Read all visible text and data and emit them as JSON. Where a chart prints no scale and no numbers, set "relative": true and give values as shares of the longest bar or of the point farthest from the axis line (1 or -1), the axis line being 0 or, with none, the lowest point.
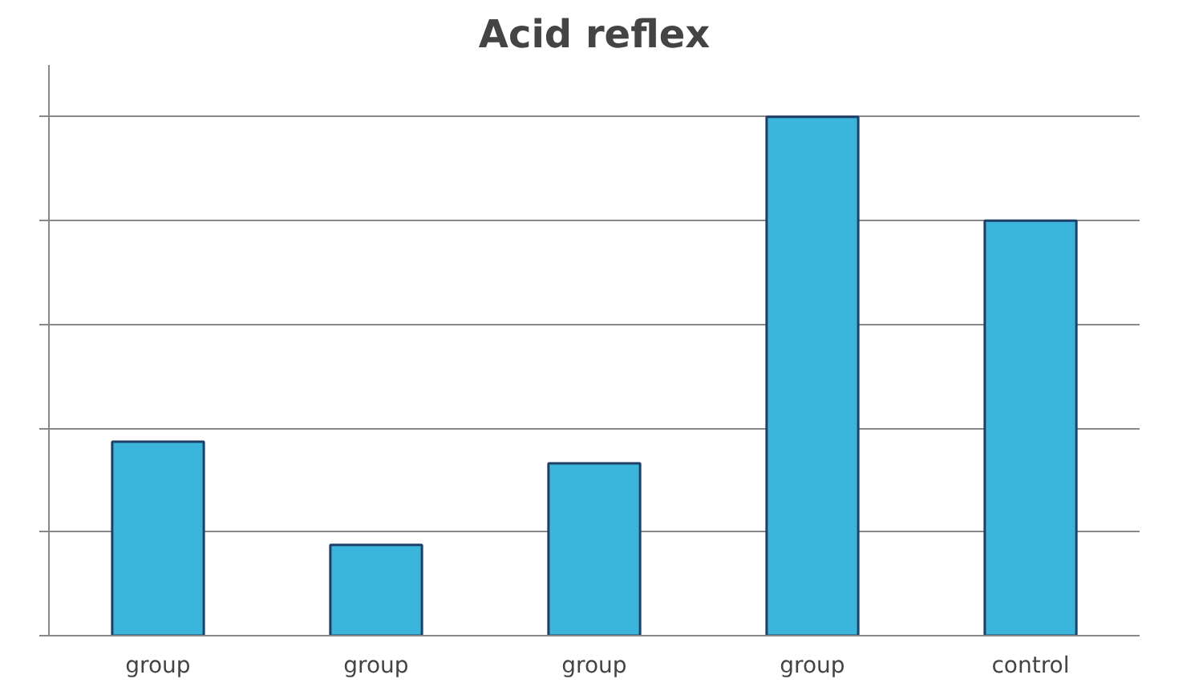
{
  "chart_data": {
    "type": "bar",
    "title": "Acid reflex",
    "relative": true,
    "grid": "y",
    "categories": [
      "group",
      "group",
      "group",
      "group",
      "control"
    ],
    "values": [
      0.374,
      0.175,
      0.332,
      1,
      0.8
    ],
    "color": "#3bb5dc"
  }
}
